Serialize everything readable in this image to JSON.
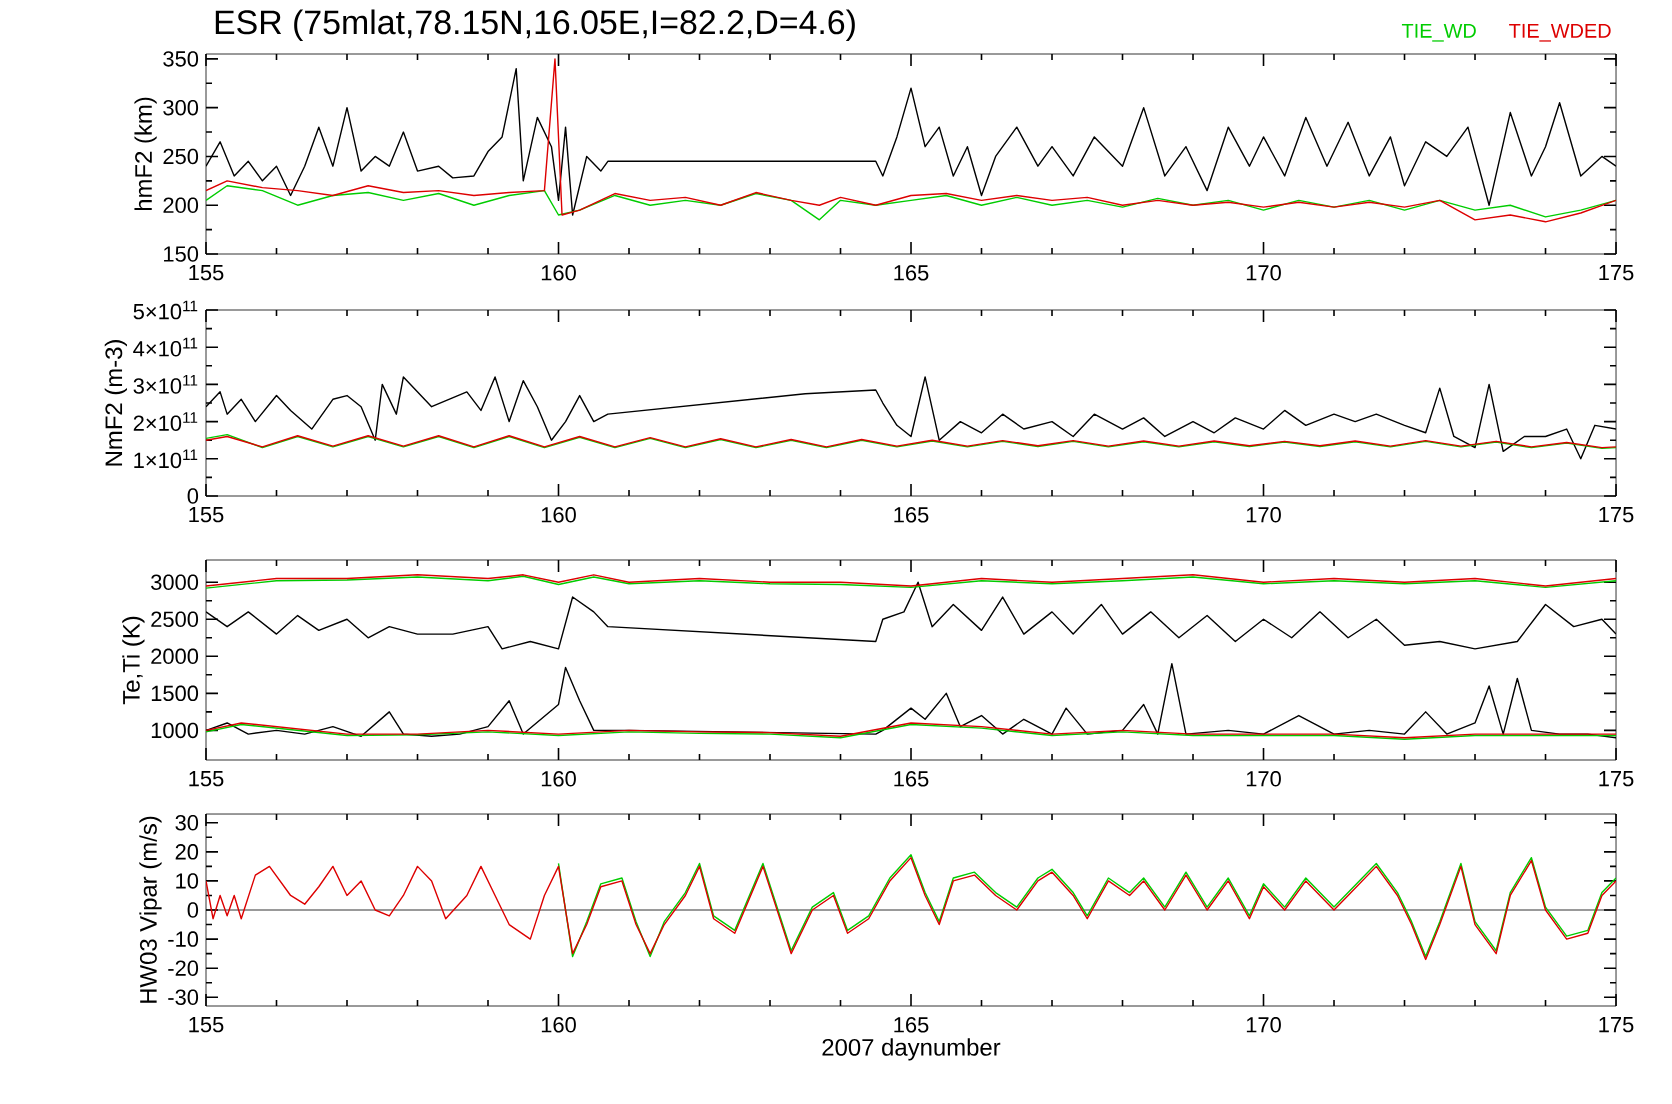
{
  "chart_data": [
    {
      "type": "line",
      "title": "ESR (75mlat,78.15N,16.05E,I=82.2,D=4.6)",
      "ylabel": "hmF2 (km)",
      "xlim": [
        155,
        175
      ],
      "xticks": [
        155,
        160,
        165,
        170,
        175
      ],
      "ylim": [
        150,
        355
      ],
      "yticks": [
        150,
        200,
        250,
        300,
        350
      ],
      "series": [
        {
          "color": "#000000",
          "x": [
            155.0,
            155.2,
            155.4,
            155.6,
            155.8,
            156.0,
            156.2,
            156.4,
            156.6,
            156.8,
            157.0,
            157.2,
            157.4,
            157.6,
            157.8,
            158.0,
            158.3,
            158.5,
            158.8,
            159.0,
            159.2,
            159.4,
            159.5,
            159.7,
            159.9,
            160.0,
            160.1,
            160.2,
            160.4,
            160.6,
            160.7,
            162.5,
            164.5,
            164.6,
            164.8,
            165.0,
            165.2,
            165.4,
            165.6,
            165.8,
            166.0,
            166.2,
            166.5,
            166.8,
            167.0,
            167.3,
            167.6,
            168.0,
            168.3,
            168.6,
            168.9,
            169.2,
            169.5,
            169.8,
            170.0,
            170.3,
            170.6,
            170.9,
            171.2,
            171.5,
            171.8,
            172.0,
            172.3,
            172.6,
            172.9,
            173.2,
            173.5,
            173.8,
            174.0,
            174.2,
            174.5,
            174.8,
            175.0
          ],
          "values": [
            240,
            265,
            230,
            245,
            225,
            240,
            210,
            240,
            280,
            240,
            300,
            235,
            250,
            240,
            275,
            235,
            240,
            228,
            230,
            255,
            270,
            340,
            225,
            290,
            260,
            205,
            280,
            190,
            250,
            235,
            245,
            245,
            245,
            230,
            270,
            320,
            260,
            280,
            230,
            260,
            210,
            250,
            280,
            240,
            260,
            230,
            270,
            240,
            300,
            230,
            260,
            215,
            280,
            240,
            270,
            230,
            290,
            240,
            285,
            230,
            270,
            220,
            265,
            250,
            280,
            200,
            295,
            230,
            260,
            305,
            230,
            250,
            240
          ]
        },
        {
          "name": "TIE_WD",
          "color": "#00cc00",
          "x": [
            155.0,
            155.3,
            155.8,
            156.3,
            156.8,
            157.3,
            157.8,
            158.3,
            158.8,
            159.3,
            159.8,
            160.0,
            160.3,
            160.8,
            161.3,
            161.8,
            162.3,
            162.8,
            163.3,
            163.7,
            164.0,
            164.5,
            165.0,
            165.5,
            166.0,
            166.5,
            167.0,
            167.5,
            168.0,
            168.5,
            169.0,
            169.5,
            170.0,
            170.5,
            171.0,
            171.5,
            172.0,
            172.5,
            173.0,
            173.5,
            174.0,
            174.5,
            175.0
          ],
          "values": [
            205,
            220,
            215,
            200,
            210,
            213,
            205,
            212,
            200,
            210,
            215,
            190,
            195,
            210,
            200,
            205,
            200,
            212,
            205,
            185,
            205,
            200,
            205,
            210,
            200,
            208,
            200,
            205,
            198,
            207,
            200,
            205,
            195,
            205,
            198,
            205,
            195,
            205,
            195,
            200,
            188,
            195,
            205
          ]
        },
        {
          "name": "TIE_WDED",
          "color": "#dd0000",
          "x": [
            155.0,
            155.3,
            155.8,
            156.3,
            156.8,
            157.3,
            157.8,
            158.3,
            158.8,
            159.3,
            159.8,
            159.95,
            160.05,
            160.3,
            160.8,
            161.3,
            161.8,
            162.3,
            162.8,
            163.3,
            163.7,
            164.0,
            164.5,
            165.0,
            165.5,
            166.0,
            166.5,
            167.0,
            167.5,
            168.0,
            168.5,
            169.0,
            169.5,
            170.0,
            170.5,
            171.0,
            171.5,
            172.0,
            172.5,
            173.0,
            173.5,
            174.0,
            174.5,
            175.0
          ],
          "values": [
            215,
            225,
            218,
            215,
            210,
            220,
            213,
            215,
            210,
            213,
            215,
            350,
            190,
            195,
            212,
            205,
            208,
            200,
            213,
            205,
            200,
            208,
            200,
            210,
            212,
            205,
            210,
            205,
            208,
            200,
            205,
            200,
            203,
            198,
            203,
            198,
            203,
            198,
            205,
            185,
            190,
            183,
            192,
            205
          ]
        }
      ]
    },
    {
      "type": "line",
      "ylabel": "NmF2 (m-3)",
      "xlim": [
        155,
        175
      ],
      "xticks": [
        155,
        160,
        165,
        170,
        175
      ],
      "ylim": [
        0,
        500000000000.0
      ],
      "yticks": [
        0,
        {
          "value": 100000000000.0,
          "label": "1×10$^{11}$"
        },
        {
          "value": 200000000000.0,
          "label": "2×10$^{11}$"
        },
        {
          "value": 300000000000.0,
          "label": "3×10$^{11}$"
        },
        {
          "value": 400000000000.0,
          "label": "4×10$^{11}$"
        },
        {
          "value": 500000000000.0,
          "label": "5×10$^{11}$"
        }
      ],
      "series": [
        {
          "color": "#000000",
          "x": [
            155.0,
            155.2,
            155.3,
            155.5,
            155.7,
            156.0,
            156.2,
            156.5,
            156.8,
            157.0,
            157.2,
            157.4,
            157.5,
            157.7,
            157.8,
            158.0,
            158.2,
            158.7,
            158.9,
            159.1,
            159.3,
            159.5,
            159.7,
            159.9,
            160.1,
            160.3,
            160.5,
            160.7,
            163.5,
            164.5,
            164.6,
            164.8,
            165.0,
            165.2,
            165.4,
            165.7,
            166.0,
            166.3,
            166.6,
            167.0,
            167.3,
            167.6,
            168.0,
            168.3,
            168.6,
            169.0,
            169.3,
            169.6,
            170.0,
            170.3,
            170.6,
            171.0,
            171.3,
            171.6,
            172.0,
            172.3,
            172.5,
            172.7,
            173.0,
            173.2,
            173.4,
            173.7,
            174.0,
            174.3,
            174.5,
            174.7,
            175.0
          ],
          "values": [
            240000000000.0,
            280000000000.0,
            220000000000.0,
            260000000000.0,
            200000000000.0,
            270000000000.0,
            230000000000.0,
            180000000000.0,
            260000000000.0,
            270000000000.0,
            240000000000.0,
            150000000000.0,
            300000000000.0,
            220000000000.0,
            320000000000.0,
            280000000000.0,
            240000000000.0,
            280000000000.0,
            230000000000.0,
            320000000000.0,
            200000000000.0,
            310000000000.0,
            240000000000.0,
            150000000000.0,
            200000000000.0,
            270000000000.0,
            200000000000.0,
            220000000000.0,
            275000000000.0,
            285000000000.0,
            250000000000.0,
            190000000000.0,
            160000000000.0,
            320000000000.0,
            150000000000.0,
            200000000000.0,
            170000000000.0,
            220000000000.0,
            180000000000.0,
            200000000000.0,
            160000000000.0,
            220000000000.0,
            180000000000.0,
            210000000000.0,
            160000000000.0,
            200000000000.0,
            170000000000.0,
            210000000000.0,
            180000000000.0,
            230000000000.0,
            190000000000.0,
            220000000000.0,
            200000000000.0,
            220000000000.0,
            190000000000.0,
            170000000000.0,
            290000000000.0,
            160000000000.0,
            130000000000.0,
            300000000000.0,
            120000000000.0,
            160000000000.0,
            160000000000.0,
            180000000000.0,
            100000000000.0,
            190000000000.0,
            180000000000.0
          ]
        },
        {
          "color": "#00cc00",
          "x": [
            155.0,
            155.3,
            155.8,
            156.3,
            156.8,
            157.3,
            157.8,
            158.3,
            158.8,
            159.3,
            159.8,
            160.3,
            160.8,
            161.3,
            161.8,
            162.3,
            162.8,
            163.3,
            163.8,
            164.3,
            164.8,
            165.3,
            165.8,
            166.3,
            166.8,
            167.3,
            167.8,
            168.3,
            168.8,
            169.3,
            169.8,
            170.3,
            170.8,
            171.3,
            171.8,
            172.3,
            172.8,
            173.3,
            173.8,
            174.3,
            174.8,
            175.0
          ],
          "values": [
            155000000000.0,
            165000000000.0,
            130000000000.0,
            160000000000.0,
            132000000000.0,
            160000000000.0,
            132000000000.0,
            160000000000.0,
            130000000000.0,
            160000000000.0,
            130000000000.0,
            158000000000.0,
            130000000000.0,
            155000000000.0,
            130000000000.0,
            152000000000.0,
            130000000000.0,
            150000000000.0,
            130000000000.0,
            150000000000.0,
            132000000000.0,
            148000000000.0,
            132000000000.0,
            147000000000.0,
            133000000000.0,
            147000000000.0,
            132000000000.0,
            146000000000.0,
            132000000000.0,
            146000000000.0,
            133000000000.0,
            145000000000.0,
            133000000000.0,
            146000000000.0,
            132000000000.0,
            147000000000.0,
            132000000000.0,
            145000000000.0,
            130000000000.0,
            142000000000.0,
            128000000000.0,
            130000000000.0
          ]
        },
        {
          "color": "#dd0000",
          "x": [
            155.0,
            155.3,
            155.8,
            156.3,
            156.8,
            157.3,
            157.8,
            158.3,
            158.8,
            159.3,
            159.8,
            160.3,
            160.8,
            161.3,
            161.8,
            162.3,
            162.8,
            163.3,
            163.8,
            164.3,
            164.8,
            165.3,
            165.8,
            166.3,
            166.8,
            167.3,
            167.8,
            168.3,
            168.8,
            169.3,
            169.8,
            170.3,
            170.8,
            171.3,
            171.8,
            172.3,
            172.8,
            173.3,
            173.8,
            174.3,
            174.8,
            175.0
          ],
          "values": [
            150000000000.0,
            160000000000.0,
            132000000000.0,
            162000000000.0,
            134000000000.0,
            162000000000.0,
            134000000000.0,
            162000000000.0,
            132000000000.0,
            162000000000.0,
            132000000000.0,
            160000000000.0,
            132000000000.0,
            157000000000.0,
            132000000000.0,
            154000000000.0,
            132000000000.0,
            152000000000.0,
            132000000000.0,
            152000000000.0,
            134000000000.0,
            150000000000.0,
            134000000000.0,
            149000000000.0,
            135000000000.0,
            149000000000.0,
            134000000000.0,
            148000000000.0,
            134000000000.0,
            148000000000.0,
            135000000000.0,
            147000000000.0,
            135000000000.0,
            148000000000.0,
            134000000000.0,
            149000000000.0,
            134000000000.0,
            147000000000.0,
            132000000000.0,
            144000000000.0,
            130000000000.0,
            132000000000.0
          ]
        }
      ]
    },
    {
      "type": "line",
      "ylabel": "Te,Ti (K)",
      "xlim": [
        155,
        175
      ],
      "xticks": [
        155,
        160,
        165,
        170,
        175
      ],
      "ylim": [
        600,
        3300
      ],
      "yticks": [
        1000,
        1500,
        2000,
        2500,
        3000
      ],
      "series": [
        {
          "color": "#000000",
          "x": [
            155.0,
            155.3,
            155.6,
            156.0,
            156.3,
            156.6,
            157.0,
            157.3,
            157.6,
            158.0,
            158.5,
            159.0,
            159.1,
            159.2,
            159.4,
            159.6,
            159.8,
            160.0,
            160.2,
            160.5,
            160.7,
            164.5,
            164.6,
            164.9,
            165.1,
            165.3,
            165.6,
            166.0,
            166.3,
            166.6,
            167.0,
            167.3,
            167.7,
            168.0,
            168.4,
            168.8,
            169.2,
            169.6,
            170.0,
            170.4,
            170.8,
            171.2,
            171.6,
            172.0,
            172.3,
            172.5,
            172.8,
            173.0,
            173.3,
            173.6,
            174.0,
            174.4,
            174.8,
            175.0
          ],
          "values": [
            2600,
            2400,
            2600,
            2300,
            2550,
            2350,
            2500,
            2250,
            2400,
            2300,
            2300,
            2400,
            null,
            2100,
            null,
            2200,
            null,
            2100,
            2800,
            2600,
            2400,
            2200,
            2500,
            2600,
            3000,
            2400,
            2700,
            2350,
            2800,
            2300,
            2600,
            2300,
            2700,
            2300,
            2600,
            2250,
            2550,
            2200,
            2500,
            2250,
            2600,
            2250,
            2500,
            2150,
            null,
            2200,
            null,
            2100,
            null,
            2200,
            2700,
            2400,
            2500,
            2300
          ]
        },
        {
          "color": "#000000",
          "x": [
            155.0,
            155.3,
            155.6,
            156.0,
            156.4,
            156.8,
            157.2,
            157.6,
            157.8,
            158.2,
            158.6,
            159.0,
            159.3,
            159.5,
            160.0,
            160.1,
            160.3,
            160.5,
            161.0,
            164.5,
            164.6,
            165.0,
            165.2,
            165.5,
            165.7,
            166.0,
            166.3,
            166.6,
            167.0,
            167.2,
            167.5,
            168.0,
            168.3,
            168.5,
            168.7,
            168.9,
            169.5,
            170.0,
            170.5,
            171.0,
            171.5,
            172.0,
            172.3,
            172.6,
            173.0,
            173.2,
            173.4,
            173.6,
            173.8,
            174.2,
            174.6,
            175.0
          ],
          "values": [
            1000,
            1100,
            950,
            1000,
            950,
            1050,
            920,
            1250,
            950,
            920,
            950,
            1050,
            1400,
            950,
            1350,
            1850,
            1400,
            1000,
            1000,
            950,
            1000,
            1300,
            1150,
            1500,
            1050,
            1200,
            950,
            1150,
            950,
            1300,
            950,
            1000,
            1350,
            950,
            1900,
            950,
            1000,
            950,
            1200,
            950,
            1000,
            950,
            1250,
            950,
            1100,
            1600,
            950,
            1700,
            1000,
            950,
            950,
            900
          ]
        },
        {
          "color": "#00cc00",
          "x": [
            155,
            156,
            157,
            158,
            159,
            159.5,
            160,
            160.5,
            161,
            162,
            163,
            164,
            165,
            166,
            167,
            168,
            169,
            170,
            171,
            172,
            173,
            174,
            175
          ],
          "values": [
            2920,
            3020,
            3030,
            3070,
            3020,
            3080,
            2970,
            3070,
            2980,
            3020,
            2980,
            2970,
            2930,
            3020,
            2980,
            3020,
            3070,
            2980,
            3020,
            2980,
            3020,
            2930,
            3020
          ]
        },
        {
          "color": "#00cc00",
          "x": [
            155,
            155.5,
            156,
            157,
            158,
            159,
            160,
            161,
            162,
            163,
            164,
            165,
            166,
            167,
            168,
            169,
            170,
            171,
            172,
            173,
            174,
            175
          ],
          "values": [
            980,
            1080,
            1030,
            930,
            940,
            980,
            930,
            980,
            960,
            950,
            900,
            1080,
            1030,
            930,
            980,
            930,
            930,
            930,
            880,
            930,
            930,
            930
          ]
        },
        {
          "color": "#dd0000",
          "x": [
            155,
            156,
            157,
            158,
            159,
            159.5,
            160,
            160.5,
            161,
            162,
            163,
            164,
            165,
            166,
            167,
            168,
            169,
            170,
            171,
            172,
            173,
            174,
            175
          ],
          "values": [
            2950,
            3050,
            3050,
            3100,
            3050,
            3100,
            3000,
            3100,
            3000,
            3050,
            3000,
            3000,
            2950,
            3050,
            3000,
            3050,
            3100,
            3000,
            3050,
            3000,
            3050,
            2950,
            3050
          ]
        },
        {
          "color": "#dd0000",
          "x": [
            155,
            155.5,
            156,
            157,
            158,
            159,
            160,
            161,
            162,
            163,
            164,
            165,
            166,
            167,
            168,
            169,
            170,
            171,
            172,
            173,
            174,
            175
          ],
          "values": [
            1000,
            1100,
            1050,
            950,
            950,
            1000,
            950,
            1000,
            980,
            970,
            920,
            1100,
            1050,
            950,
            1000,
            950,
            950,
            950,
            900,
            950,
            950,
            950
          ]
        }
      ]
    },
    {
      "type": "line",
      "ylabel": "HW03 Vipar (m/s)",
      "xlabel": "2007 daynumber",
      "xlim": [
        155,
        175
      ],
      "xticks": [
        155,
        160,
        165,
        170,
        175
      ],
      "ylim": [
        -33,
        33
      ],
      "yticks": [
        -30,
        -20,
        -10,
        0,
        10,
        20,
        30
      ],
      "ref_lines": [
        {
          "axis": "y",
          "value": 0,
          "color": "#000000"
        }
      ],
      "series": [
        {
          "color": "#00cc00",
          "x": [
            160.0,
            160.2,
            160.4,
            160.6,
            160.9,
            161.1,
            161.3,
            161.5,
            161.8,
            162.0,
            162.2,
            162.5,
            162.9,
            163.3,
            163.6,
            163.9,
            164.1,
            164.4,
            164.7,
            165.0,
            165.2,
            165.4,
            165.6,
            165.9,
            166.2,
            166.5,
            166.8,
            167.0,
            167.3,
            167.5,
            167.8,
            168.1,
            168.3,
            168.6,
            168.9,
            169.2,
            169.5,
            169.8,
            170.0,
            170.3,
            170.6,
            171.0,
            171.2,
            171.6,
            171.9,
            172.1,
            172.3,
            172.5,
            172.8,
            173.0,
            173.3,
            173.5,
            173.8,
            174.0,
            174.3,
            174.6,
            174.8,
            175.0
          ],
          "values": [
            16,
            -16,
            -4,
            9,
            11,
            -4,
            -16,
            -4,
            6,
            16,
            -2,
            -7,
            16,
            -14,
            1,
            6,
            -7,
            -2,
            11,
            19,
            6,
            -4,
            11,
            13,
            6,
            1,
            11,
            14,
            6,
            -2,
            11,
            6,
            11,
            1,
            13,
            1,
            11,
            -2,
            9,
            1,
            11,
            1,
            6,
            16,
            6,
            -4,
            -16,
            -4,
            16,
            -4,
            -14,
            6,
            18,
            1,
            -9,
            -7,
            6,
            11
          ]
        },
        {
          "color": "#dd0000",
          "x": [
            155.0,
            155.1,
            155.2,
            155.3,
            155.4,
            155.5,
            155.7,
            155.9,
            156.2,
            156.4,
            156.6,
            156.8,
            157.0,
            157.2,
            157.4,
            157.6,
            157.8,
            158.0,
            158.2,
            158.4,
            158.7,
            158.9,
            159.1,
            159.3,
            159.6,
            159.8,
            160.0,
            160.2,
            160.4,
            160.6,
            160.9,
            161.1,
            161.3,
            161.5,
            161.8,
            162.0,
            162.2,
            162.5,
            162.9,
            163.3,
            163.6,
            163.9,
            164.1,
            164.4,
            164.7,
            165.0,
            165.2,
            165.4,
            165.6,
            165.9,
            166.2,
            166.5,
            166.8,
            167.0,
            167.3,
            167.5,
            167.8,
            168.1,
            168.3,
            168.6,
            168.9,
            169.2,
            169.5,
            169.8,
            170.0,
            170.3,
            170.6,
            171.0,
            171.2,
            171.6,
            171.9,
            172.1,
            172.3,
            172.5,
            172.8,
            173.0,
            173.3,
            173.5,
            173.8,
            174.0,
            174.3,
            174.6,
            174.8,
            175.0
          ],
          "values": [
            10,
            -3,
            5,
            -2,
            5,
            -3,
            12,
            15,
            5,
            2,
            8,
            15,
            5,
            10,
            0,
            -2,
            5,
            15,
            10,
            -3,
            5,
            15,
            5,
            -5,
            -10,
            5,
            15,
            -15,
            -5,
            8,
            10,
            -5,
            -15,
            -5,
            5,
            15,
            -3,
            -8,
            15,
            -15,
            0,
            5,
            -8,
            -3,
            10,
            18,
            5,
            -5,
            10,
            12,
            5,
            0,
            10,
            13,
            5,
            -3,
            10,
            5,
            10,
            0,
            12,
            0,
            10,
            -3,
            8,
            0,
            10,
            0,
            5,
            15,
            5,
            -5,
            -17,
            -5,
            15,
            -5,
            -15,
            5,
            17,
            0,
            -10,
            -8,
            5,
            10
          ]
        }
      ]
    }
  ]
}
